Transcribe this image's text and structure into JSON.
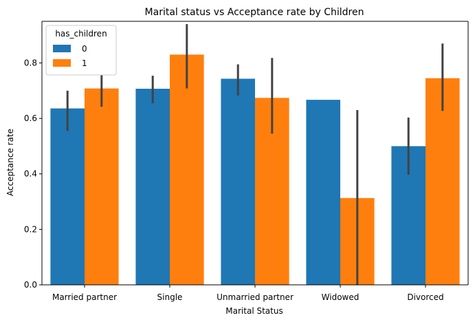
{
  "chart_data": {
    "type": "bar",
    "title": "Marital status vs Acceptance rate by Children",
    "xlabel": "Marital Status",
    "ylabel": "Acceptance rate",
    "ylim": [
      0,
      0.95
    ],
    "yticks": [
      0.0,
      0.2,
      0.4,
      0.6,
      0.8
    ],
    "ytick_labels": [
      "0.0",
      "0.2",
      "0.4",
      "0.6",
      "0.8"
    ],
    "categories": [
      "Married partner",
      "Single",
      "Unmarried partner",
      "Widowed",
      "Divorced"
    ],
    "legend": {
      "title": "has_children",
      "placement": "upper-left"
    },
    "grid": false,
    "series": [
      {
        "name": "0",
        "color": "#1f77b4",
        "values": [
          0.636,
          0.707,
          0.743,
          0.667,
          0.5
        ],
        "ci_low": [
          0.555,
          0.655,
          0.683,
          null,
          0.397
        ],
        "ci_high": [
          0.7,
          0.754,
          0.795,
          null,
          0.603
        ]
      },
      {
        "name": "1",
        "color": "#ff7f0e",
        "values": [
          0.708,
          0.83,
          0.674,
          0.313,
          0.745
        ],
        "ci_low": [
          0.642,
          0.708,
          0.545,
          0.0,
          0.627
        ],
        "ci_high": [
          0.757,
          0.94,
          0.818,
          0.63,
          0.87
        ]
      }
    ]
  }
}
